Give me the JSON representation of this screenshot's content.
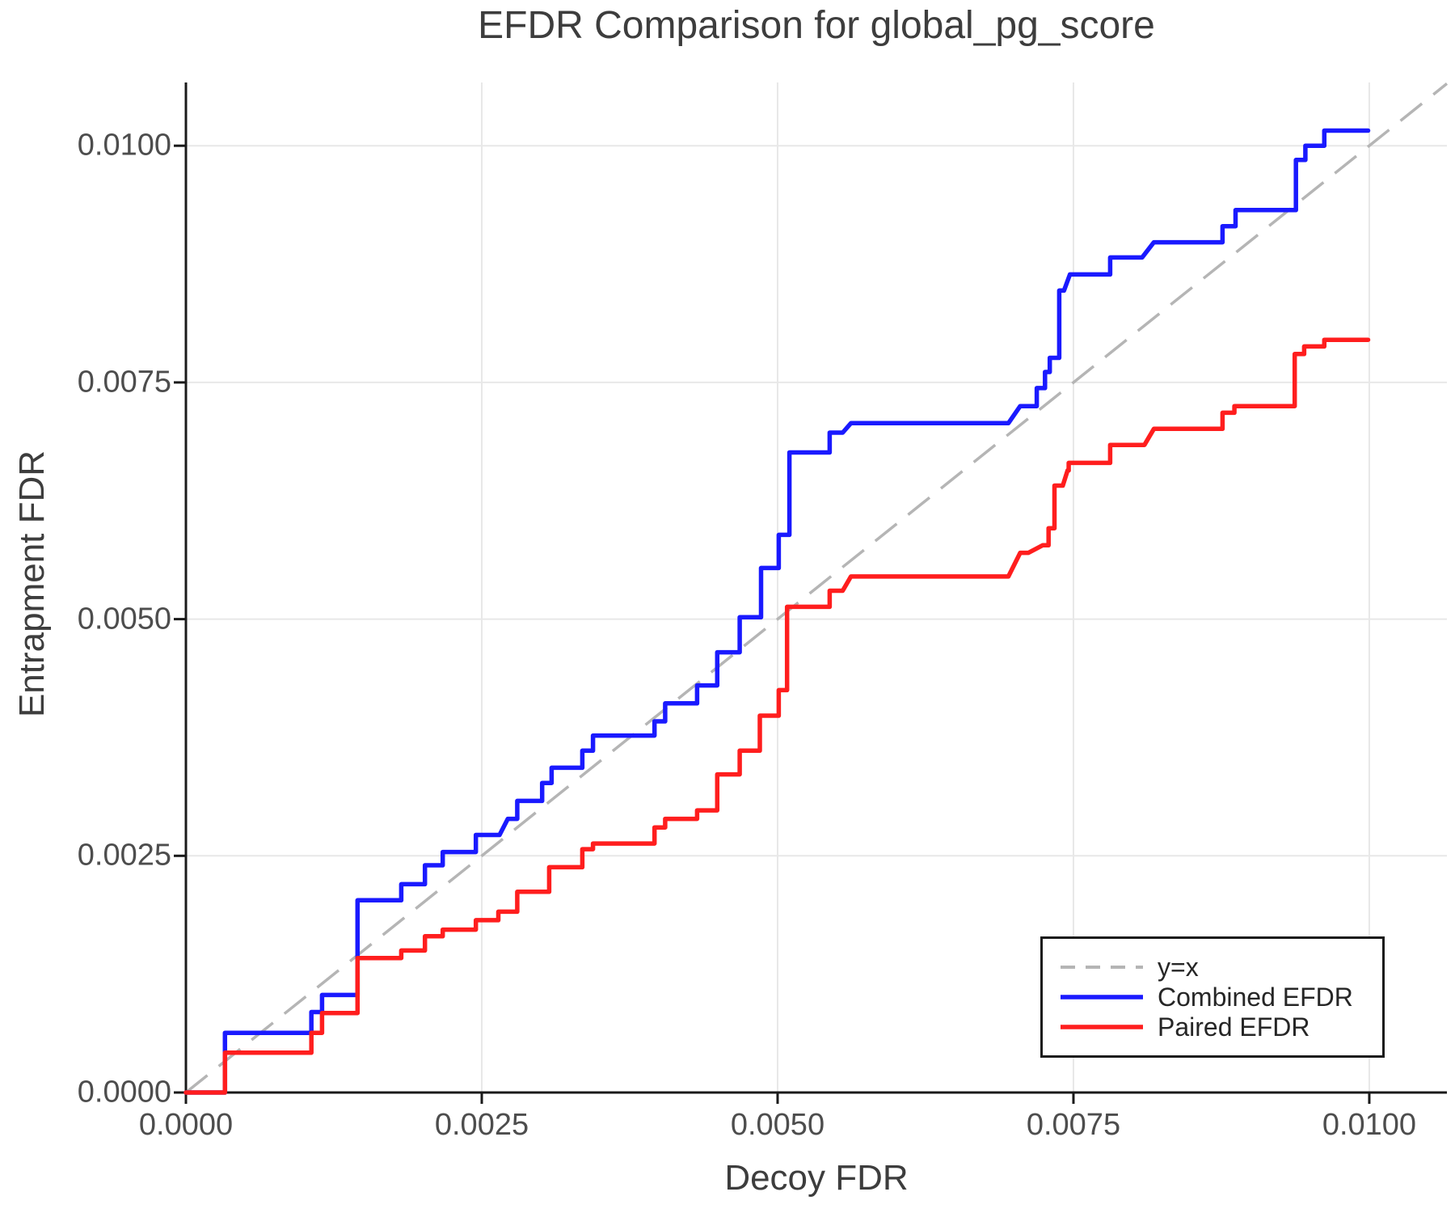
{
  "page": {
    "background": "#ffffff"
  },
  "chart": {
    "title": "EFDR Comparison for global_pg_score",
    "xlabel": "Decoy FDR",
    "ylabel": "Entrapment FDR"
  },
  "legend": {
    "items": [
      {
        "label": "y=x",
        "color": "#b5b5b5",
        "dashed": true
      },
      {
        "label": "Combined EFDR",
        "color": "#1a1aff",
        "dashed": false
      },
      {
        "label": "Paired EFDR",
        "color": "#ff1e1e",
        "dashed": false
      }
    ]
  },
  "style": {
    "grid_color": "#e8e8e8",
    "spine_color": "#1a1a1a",
    "tick_color": "#1a1a1a",
    "reference_color": "#b5b5b5",
    "series_line_width": 5.5,
    "reference_line_width": 3.5
  },
  "chart_data": {
    "type": "line",
    "title": "EFDR Comparison for global_pg_score",
    "xlabel": "Decoy FDR",
    "ylabel": "Entrapment FDR",
    "xlim": [
      0,
      0.010656
    ],
    "ylim": [
      0,
      0.010668
    ],
    "grid": true,
    "legend_position": "lower right",
    "xticks": {
      "values": [
        0,
        0.0025,
        0.005,
        0.0075,
        0.01
      ],
      "labels": [
        "0.0000",
        "0.0025",
        "0.0050",
        "0.0075",
        "0.0100"
      ]
    },
    "yticks": {
      "values": [
        0,
        0.0025,
        0.005,
        0.0075,
        0.01
      ],
      "labels": [
        "0.0000",
        "0.0025",
        "0.0050",
        "0.0075",
        "0.0100"
      ]
    },
    "reference_line": {
      "name": "y=x",
      "from": [
        0,
        0
      ],
      "to": [
        0.010656,
        0.010656
      ],
      "color": "#b5b5b5",
      "dashed": true
    },
    "series": [
      {
        "name": "Combined EFDR",
        "color": "#1a1aff",
        "points": [
          [
            0.0,
            0.0
          ],
          [
            0.00033,
            0.0
          ],
          [
            0.00033,
            0.00063
          ],
          [
            0.00106,
            0.00063
          ],
          [
            0.00106,
            0.00085
          ],
          [
            0.00115,
            0.00085
          ],
          [
            0.00115,
            0.00103
          ],
          [
            0.00145,
            0.00103
          ],
          [
            0.00145,
            0.00203
          ],
          [
            0.00182,
            0.00203
          ],
          [
            0.00182,
            0.0022
          ],
          [
            0.00202,
            0.0022
          ],
          [
            0.00202,
            0.0024
          ],
          [
            0.00217,
            0.0024
          ],
          [
            0.00217,
            0.00254
          ],
          [
            0.00245,
            0.00254
          ],
          [
            0.00245,
            0.00272
          ],
          [
            0.00265,
            0.00272
          ],
          [
            0.00272,
            0.00289
          ],
          [
            0.0028,
            0.00289
          ],
          [
            0.0028,
            0.00308
          ],
          [
            0.00301,
            0.00308
          ],
          [
            0.00301,
            0.00327
          ],
          [
            0.00309,
            0.00327
          ],
          [
            0.00309,
            0.00343
          ],
          [
            0.00335,
            0.00343
          ],
          [
            0.00335,
            0.00361
          ],
          [
            0.00344,
            0.00361
          ],
          [
            0.00344,
            0.00377
          ],
          [
            0.00396,
            0.00377
          ],
          [
            0.00396,
            0.00392
          ],
          [
            0.00405,
            0.00392
          ],
          [
            0.00405,
            0.00411
          ],
          [
            0.00432,
            0.00411
          ],
          [
            0.00432,
            0.0043
          ],
          [
            0.00449,
            0.0043
          ],
          [
            0.00449,
            0.00465
          ],
          [
            0.00468,
            0.00465
          ],
          [
            0.00468,
            0.00502
          ],
          [
            0.00486,
            0.00502
          ],
          [
            0.00486,
            0.00554
          ],
          [
            0.00501,
            0.00554
          ],
          [
            0.00501,
            0.00589
          ],
          [
            0.0051,
            0.00589
          ],
          [
            0.0051,
            0.00676
          ],
          [
            0.00544,
            0.00676
          ],
          [
            0.00544,
            0.00697
          ],
          [
            0.00555,
            0.00697
          ],
          [
            0.00562,
            0.00707
          ],
          [
            0.00695,
            0.00707
          ],
          [
            0.00705,
            0.00725
          ],
          [
            0.00719,
            0.00725
          ],
          [
            0.00719,
            0.00744
          ],
          [
            0.00726,
            0.00744
          ],
          [
            0.00726,
            0.00761
          ],
          [
            0.0073,
            0.00761
          ],
          [
            0.0073,
            0.00776
          ],
          [
            0.00738,
            0.00776
          ],
          [
            0.00738,
            0.00847
          ],
          [
            0.00742,
            0.00847
          ],
          [
            0.00747,
            0.00864
          ],
          [
            0.00781,
            0.00864
          ],
          [
            0.00781,
            0.00882
          ],
          [
            0.00808,
            0.00882
          ],
          [
            0.00818,
            0.00898
          ],
          [
            0.00876,
            0.00898
          ],
          [
            0.00876,
            0.00915
          ],
          [
            0.00887,
            0.00915
          ],
          [
            0.00887,
            0.00932
          ],
          [
            0.00938,
            0.00932
          ],
          [
            0.00938,
            0.00985
          ],
          [
            0.00946,
            0.00985
          ],
          [
            0.00946,
            0.01
          ],
          [
            0.00962,
            0.01
          ],
          [
            0.00962,
            0.01016
          ],
          [
            0.00999,
            0.01016
          ]
        ]
      },
      {
        "name": "Paired EFDR",
        "color": "#ff1e1e",
        "points": [
          [
            0.0,
            0.0
          ],
          [
            0.00033,
            0.0
          ],
          [
            0.00033,
            0.00042
          ],
          [
            0.00106,
            0.00042
          ],
          [
            0.00106,
            0.00063
          ],
          [
            0.00115,
            0.00063
          ],
          [
            0.00115,
            0.00084
          ],
          [
            0.00145,
            0.00084
          ],
          [
            0.00145,
            0.00142
          ],
          [
            0.00182,
            0.00142
          ],
          [
            0.00182,
            0.0015
          ],
          [
            0.00202,
            0.0015
          ],
          [
            0.00202,
            0.00165
          ],
          [
            0.00217,
            0.00165
          ],
          [
            0.00217,
            0.00172
          ],
          [
            0.00245,
            0.00172
          ],
          [
            0.00245,
            0.00182
          ],
          [
            0.00264,
            0.00182
          ],
          [
            0.00264,
            0.00191
          ],
          [
            0.0028,
            0.00191
          ],
          [
            0.0028,
            0.00212
          ],
          [
            0.00307,
            0.00212
          ],
          [
            0.00307,
            0.00238
          ],
          [
            0.00335,
            0.00238
          ],
          [
            0.00335,
            0.00257
          ],
          [
            0.00344,
            0.00257
          ],
          [
            0.00344,
            0.00263
          ],
          [
            0.00396,
            0.00263
          ],
          [
            0.00396,
            0.0028
          ],
          [
            0.00405,
            0.0028
          ],
          [
            0.00405,
            0.00289
          ],
          [
            0.00432,
            0.00289
          ],
          [
            0.00432,
            0.00298
          ],
          [
            0.00449,
            0.00298
          ],
          [
            0.00449,
            0.00336
          ],
          [
            0.00468,
            0.00336
          ],
          [
            0.00468,
            0.00361
          ],
          [
            0.00485,
            0.00361
          ],
          [
            0.00485,
            0.00398
          ],
          [
            0.00501,
            0.00398
          ],
          [
            0.00501,
            0.00425
          ],
          [
            0.00508,
            0.00425
          ],
          [
            0.00508,
            0.00513
          ],
          [
            0.00544,
            0.00513
          ],
          [
            0.00544,
            0.0053
          ],
          [
            0.00555,
            0.0053
          ],
          [
            0.00562,
            0.00545
          ],
          [
            0.00695,
            0.00545
          ],
          [
            0.00705,
            0.0057
          ],
          [
            0.00712,
            0.0057
          ],
          [
            0.00724,
            0.00578
          ],
          [
            0.00729,
            0.00578
          ],
          [
            0.00729,
            0.00596
          ],
          [
            0.00734,
            0.00596
          ],
          [
            0.00734,
            0.00641
          ],
          [
            0.00741,
            0.00641
          ],
          [
            0.00745,
            0.00657
          ],
          [
            0.00746,
            0.00657
          ],
          [
            0.00746,
            0.00665
          ],
          [
            0.00781,
            0.00665
          ],
          [
            0.00781,
            0.00684
          ],
          [
            0.0081,
            0.00684
          ],
          [
            0.00818,
            0.00701
          ],
          [
            0.00876,
            0.00701
          ],
          [
            0.00876,
            0.00718
          ],
          [
            0.00886,
            0.00718
          ],
          [
            0.00886,
            0.00725
          ],
          [
            0.00937,
            0.00725
          ],
          [
            0.00937,
            0.0078
          ],
          [
            0.00945,
            0.0078
          ],
          [
            0.00945,
            0.00788
          ],
          [
            0.00962,
            0.00788
          ],
          [
            0.00962,
            0.00795
          ],
          [
            0.00999,
            0.00795
          ]
        ]
      }
    ]
  }
}
